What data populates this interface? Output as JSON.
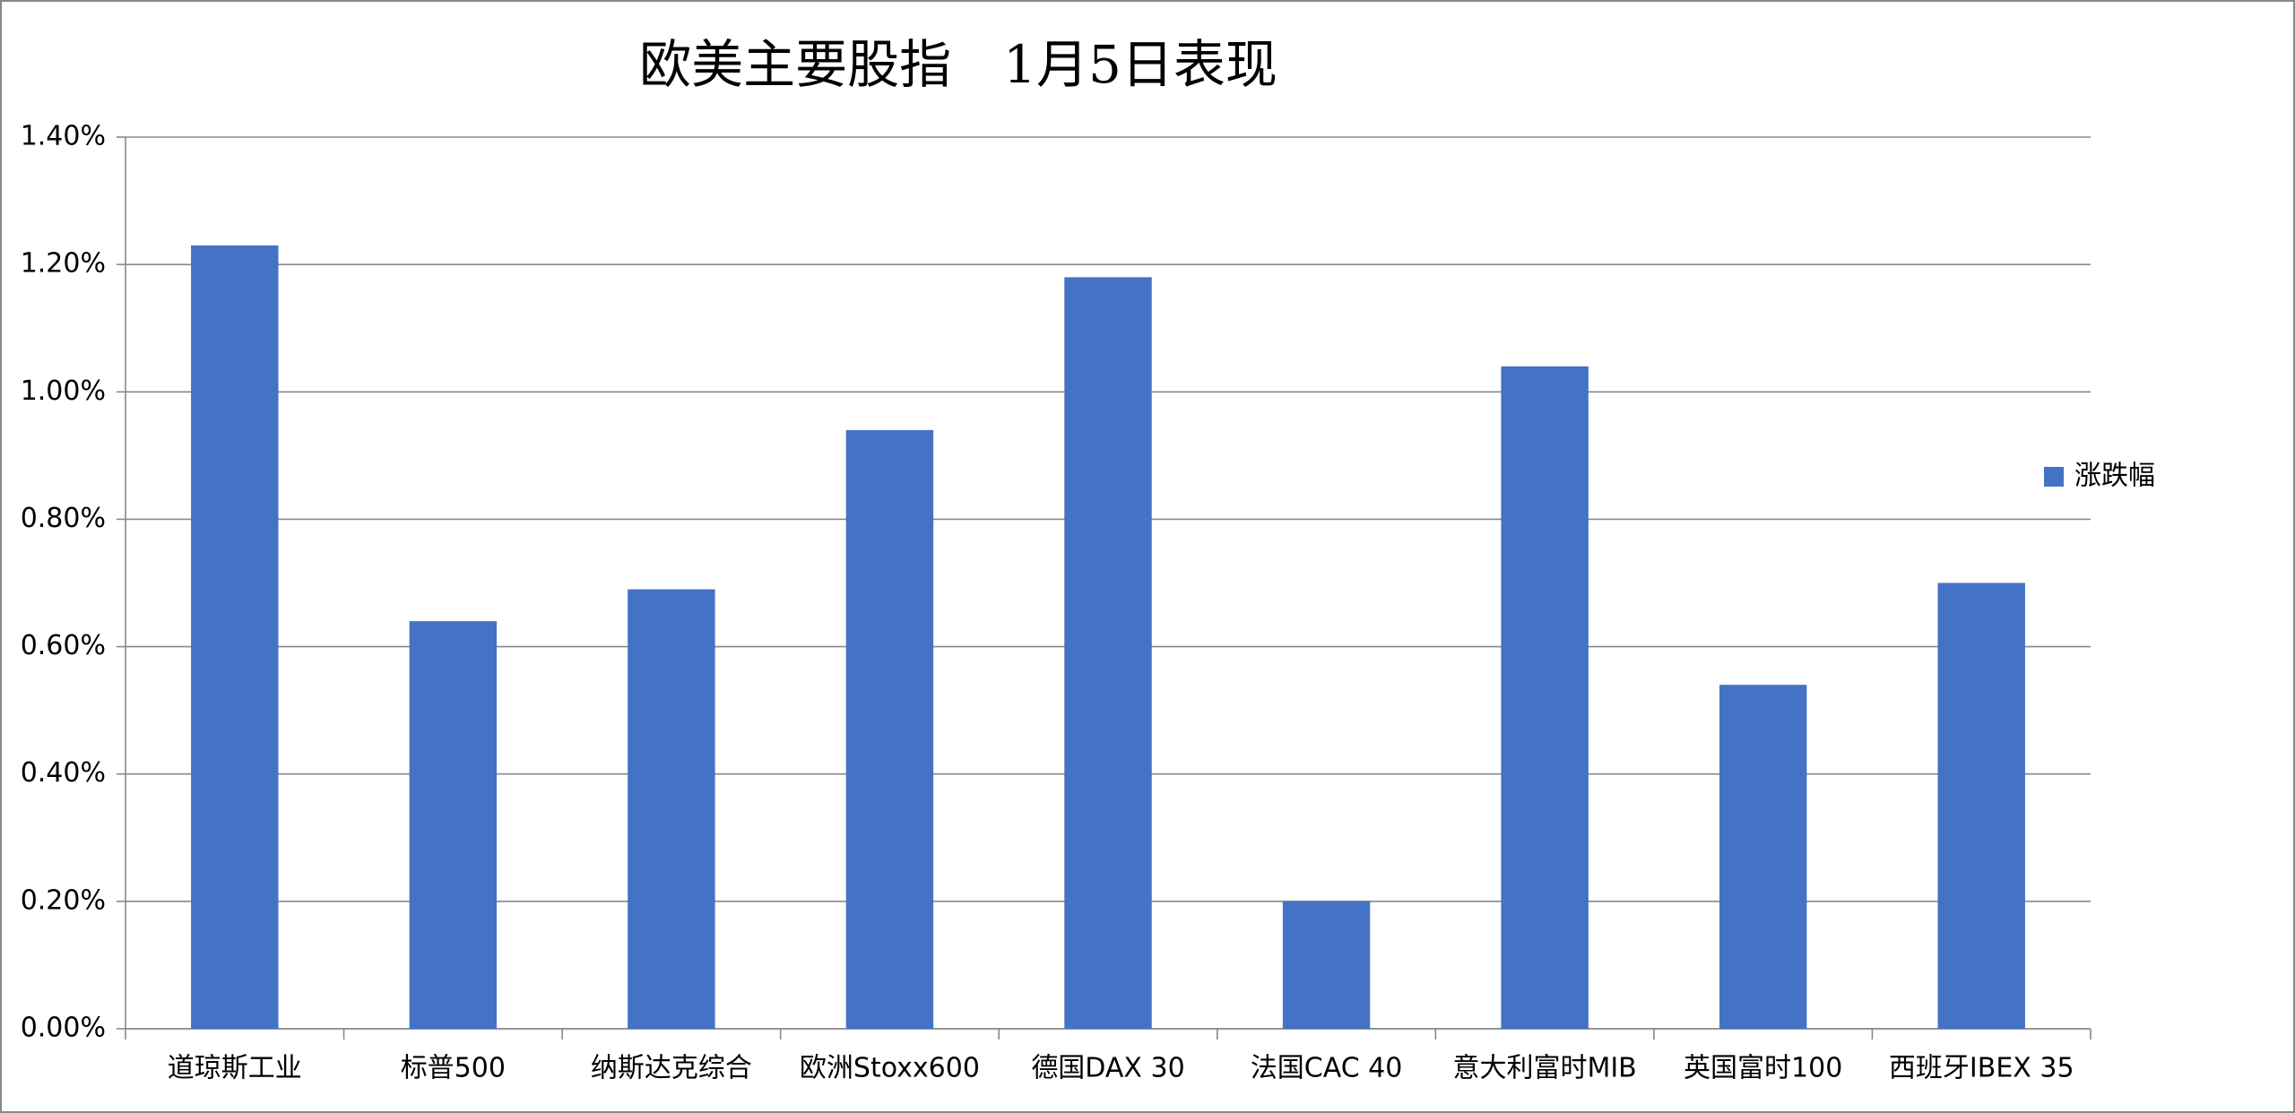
{
  "chart_data": {
    "type": "bar",
    "title": "欧美主要股指　1月5日表现",
    "categories": [
      "道琼斯工业",
      "标普500",
      "纳斯达克综合",
      "欧洲Stoxx600",
      "德国DAX 30",
      "法国CAC 40",
      "意大利富时MIB",
      "英国富时100",
      "西班牙IBEX 35"
    ],
    "series": [
      {
        "name": "涨跌幅",
        "color": "#4472c4",
        "values": [
          1.23,
          0.64,
          0.69,
          0.94,
          1.18,
          0.2,
          1.04,
          0.54,
          0.7
        ]
      }
    ],
    "ylim": [
      0,
      1.4
    ],
    "yticks": [
      {
        "value": 0,
        "label": "0.00%"
      },
      {
        "value": 0.2,
        "label": "0.20%"
      },
      {
        "value": 0.4,
        "label": "0.40%"
      },
      {
        "value": 0.6,
        "label": "0.60%"
      },
      {
        "value": 0.8,
        "label": "0.80%"
      },
      {
        "value": 1.0,
        "label": "1.00%"
      },
      {
        "value": 1.2,
        "label": "1.20%"
      },
      {
        "value": 1.4,
        "label": "1.40%"
      }
    ],
    "grid": true,
    "legend": "right"
  }
}
